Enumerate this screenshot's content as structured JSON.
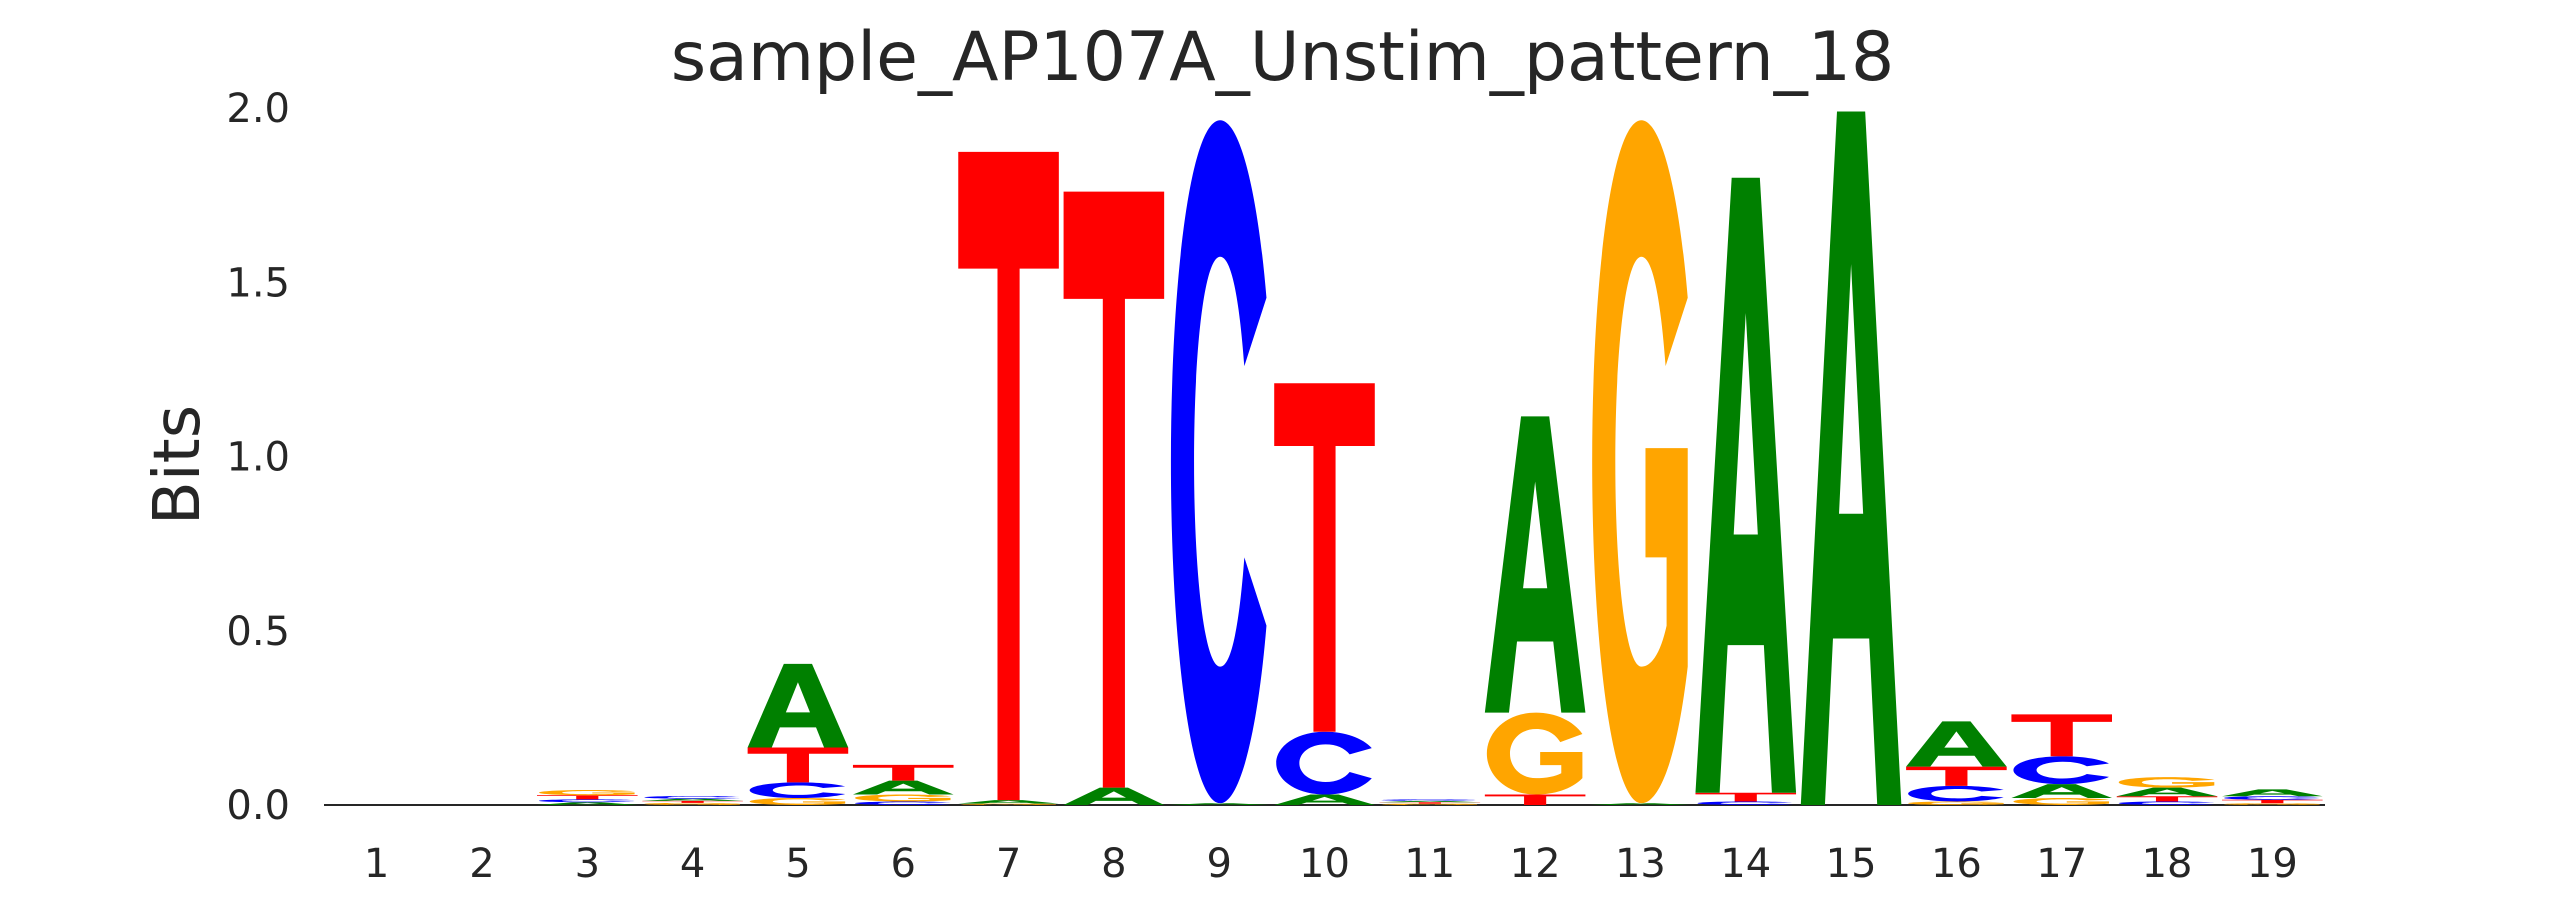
{
  "chart_data": {
    "type": "sequence_logo",
    "title": "sample_AP107A_Unstim_pattern_18",
    "xlabel": "",
    "ylabel": "Bits",
    "ylim": [
      0,
      2.0
    ],
    "y_ticks": [
      "0.0",
      "0.5",
      "1.0",
      "1.5",
      "2.0"
    ],
    "grid": false,
    "colors": {
      "A": "#008000",
      "C": "#0000ff",
      "G": "#ffa500",
      "T": "#ff0000"
    },
    "positions": [
      {
        "label": "1",
        "letters": []
      },
      {
        "label": "2",
        "letters": []
      },
      {
        "label": "3",
        "letters": [
          {
            "base": "A",
            "bits": 0.008
          },
          {
            "base": "C",
            "bits": 0.008
          },
          {
            "base": "T",
            "bits": 0.012
          },
          {
            "base": "G",
            "bits": 0.015
          }
        ]
      },
      {
        "label": "4",
        "letters": [
          {
            "base": "G",
            "bits": 0.006
          },
          {
            "base": "T",
            "bits": 0.006
          },
          {
            "base": "A",
            "bits": 0.006
          },
          {
            "base": "C",
            "bits": 0.008
          }
        ]
      },
      {
        "label": "5",
        "letters": [
          {
            "base": "G",
            "bits": 0.02
          },
          {
            "base": "C",
            "bits": 0.045
          },
          {
            "base": "T",
            "bits": 0.1
          },
          {
            "base": "A",
            "bits": 0.24
          }
        ]
      },
      {
        "label": "6",
        "letters": [
          {
            "base": "C",
            "bits": 0.01
          },
          {
            "base": "G",
            "bits": 0.02
          },
          {
            "base": "A",
            "bits": 0.04
          },
          {
            "base": "T",
            "bits": 0.045
          }
        ]
      },
      {
        "label": "7",
        "letters": [
          {
            "base": "G",
            "bits": 0.004
          },
          {
            "base": "A",
            "bits": 0.01
          },
          {
            "base": "T",
            "bits": 1.86
          }
        ]
      },
      {
        "label": "8",
        "letters": [
          {
            "base": "A",
            "bits": 0.05
          },
          {
            "base": "T",
            "bits": 1.71
          }
        ]
      },
      {
        "label": "9",
        "letters": [
          {
            "base": "A",
            "bits": 0.005
          },
          {
            "base": "C",
            "bits": 1.96
          }
        ]
      },
      {
        "label": "10",
        "letters": [
          {
            "base": "A",
            "bits": 0.03
          },
          {
            "base": "C",
            "bits": 0.18
          },
          {
            "base": "T",
            "bits": 1.0
          }
        ]
      },
      {
        "label": "11",
        "letters": [
          {
            "base": "G",
            "bits": 0.004
          },
          {
            "base": "T",
            "bits": 0.004
          },
          {
            "base": "A",
            "bits": 0.004
          },
          {
            "base": "C",
            "bits": 0.004
          }
        ]
      },
      {
        "label": "12",
        "letters": [
          {
            "base": "T",
            "bits": 0.03
          },
          {
            "base": "G",
            "bits": 0.235
          },
          {
            "base": "A",
            "bits": 0.85
          }
        ]
      },
      {
        "label": "13",
        "letters": [
          {
            "base": "A",
            "bits": 0.005
          },
          {
            "base": "G",
            "bits": 1.96
          }
        ]
      },
      {
        "label": "14",
        "letters": [
          {
            "base": "C",
            "bits": 0.01
          },
          {
            "base": "T",
            "bits": 0.025
          },
          {
            "base": "A",
            "bits": 1.765
          }
        ]
      },
      {
        "label": "15",
        "letters": [
          {
            "base": "A",
            "bits": 1.99
          }
        ]
      },
      {
        "label": "16",
        "letters": [
          {
            "base": "G",
            "bits": 0.01
          },
          {
            "base": "C",
            "bits": 0.045
          },
          {
            "base": "T",
            "bits": 0.055
          },
          {
            "base": "A",
            "bits": 0.13
          }
        ]
      },
      {
        "label": "17",
        "letters": [
          {
            "base": "G",
            "bits": 0.02
          },
          {
            "base": "A",
            "bits": 0.04
          },
          {
            "base": "C",
            "bits": 0.08
          },
          {
            "base": "T",
            "bits": 0.12
          }
        ]
      },
      {
        "label": "18",
        "letters": [
          {
            "base": "C",
            "bits": 0.01
          },
          {
            "base": "T",
            "bits": 0.015
          },
          {
            "base": "A",
            "bits": 0.025
          },
          {
            "base": "G",
            "bits": 0.03
          }
        ]
      },
      {
        "label": "19",
        "letters": [
          {
            "base": "G",
            "bits": 0.005
          },
          {
            "base": "T",
            "bits": 0.01
          },
          {
            "base": "C",
            "bits": 0.01
          },
          {
            "base": "A",
            "bits": 0.02
          }
        ]
      }
    ]
  }
}
